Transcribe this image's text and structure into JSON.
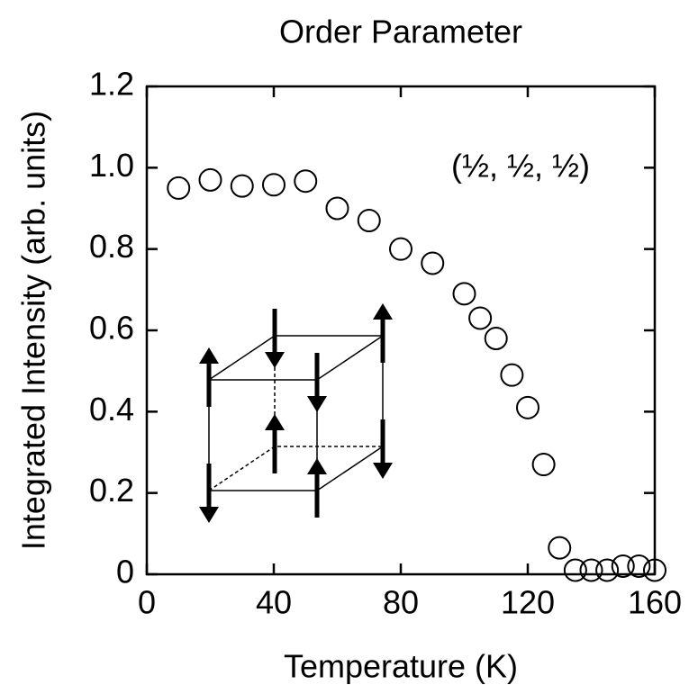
{
  "chart_data": {
    "type": "scatter",
    "title": "Order Parameter",
    "xlabel": "Temperature (K)",
    "ylabel": "Integrated Intensity (arb. units)",
    "annotation": "(½,  ½,  ½)",
    "x": [
      10,
      20,
      30,
      40,
      50,
      60,
      70,
      80,
      90,
      100,
      105,
      110,
      115,
      120,
      125,
      130,
      135,
      140,
      145,
      150,
      155,
      160
    ],
    "values": [
      0.95,
      0.97,
      0.955,
      0.958,
      0.967,
      0.9,
      0.87,
      0.8,
      0.765,
      0.69,
      0.63,
      0.58,
      0.49,
      0.41,
      0.27,
      0.065,
      0.01,
      0.01,
      0.01,
      0.02,
      0.02,
      0.01
    ],
    "color": "#000000",
    "xlim": [
      0,
      160
    ],
    "xticks": [
      0,
      40,
      80,
      120,
      160
    ],
    "ylim": [
      0,
      1.2
    ],
    "yticks": [
      0,
      0.2,
      0.4,
      0.6,
      0.8,
      {
        "value": 1,
        "label": "1.0"
      },
      1.2
    ]
  }
}
